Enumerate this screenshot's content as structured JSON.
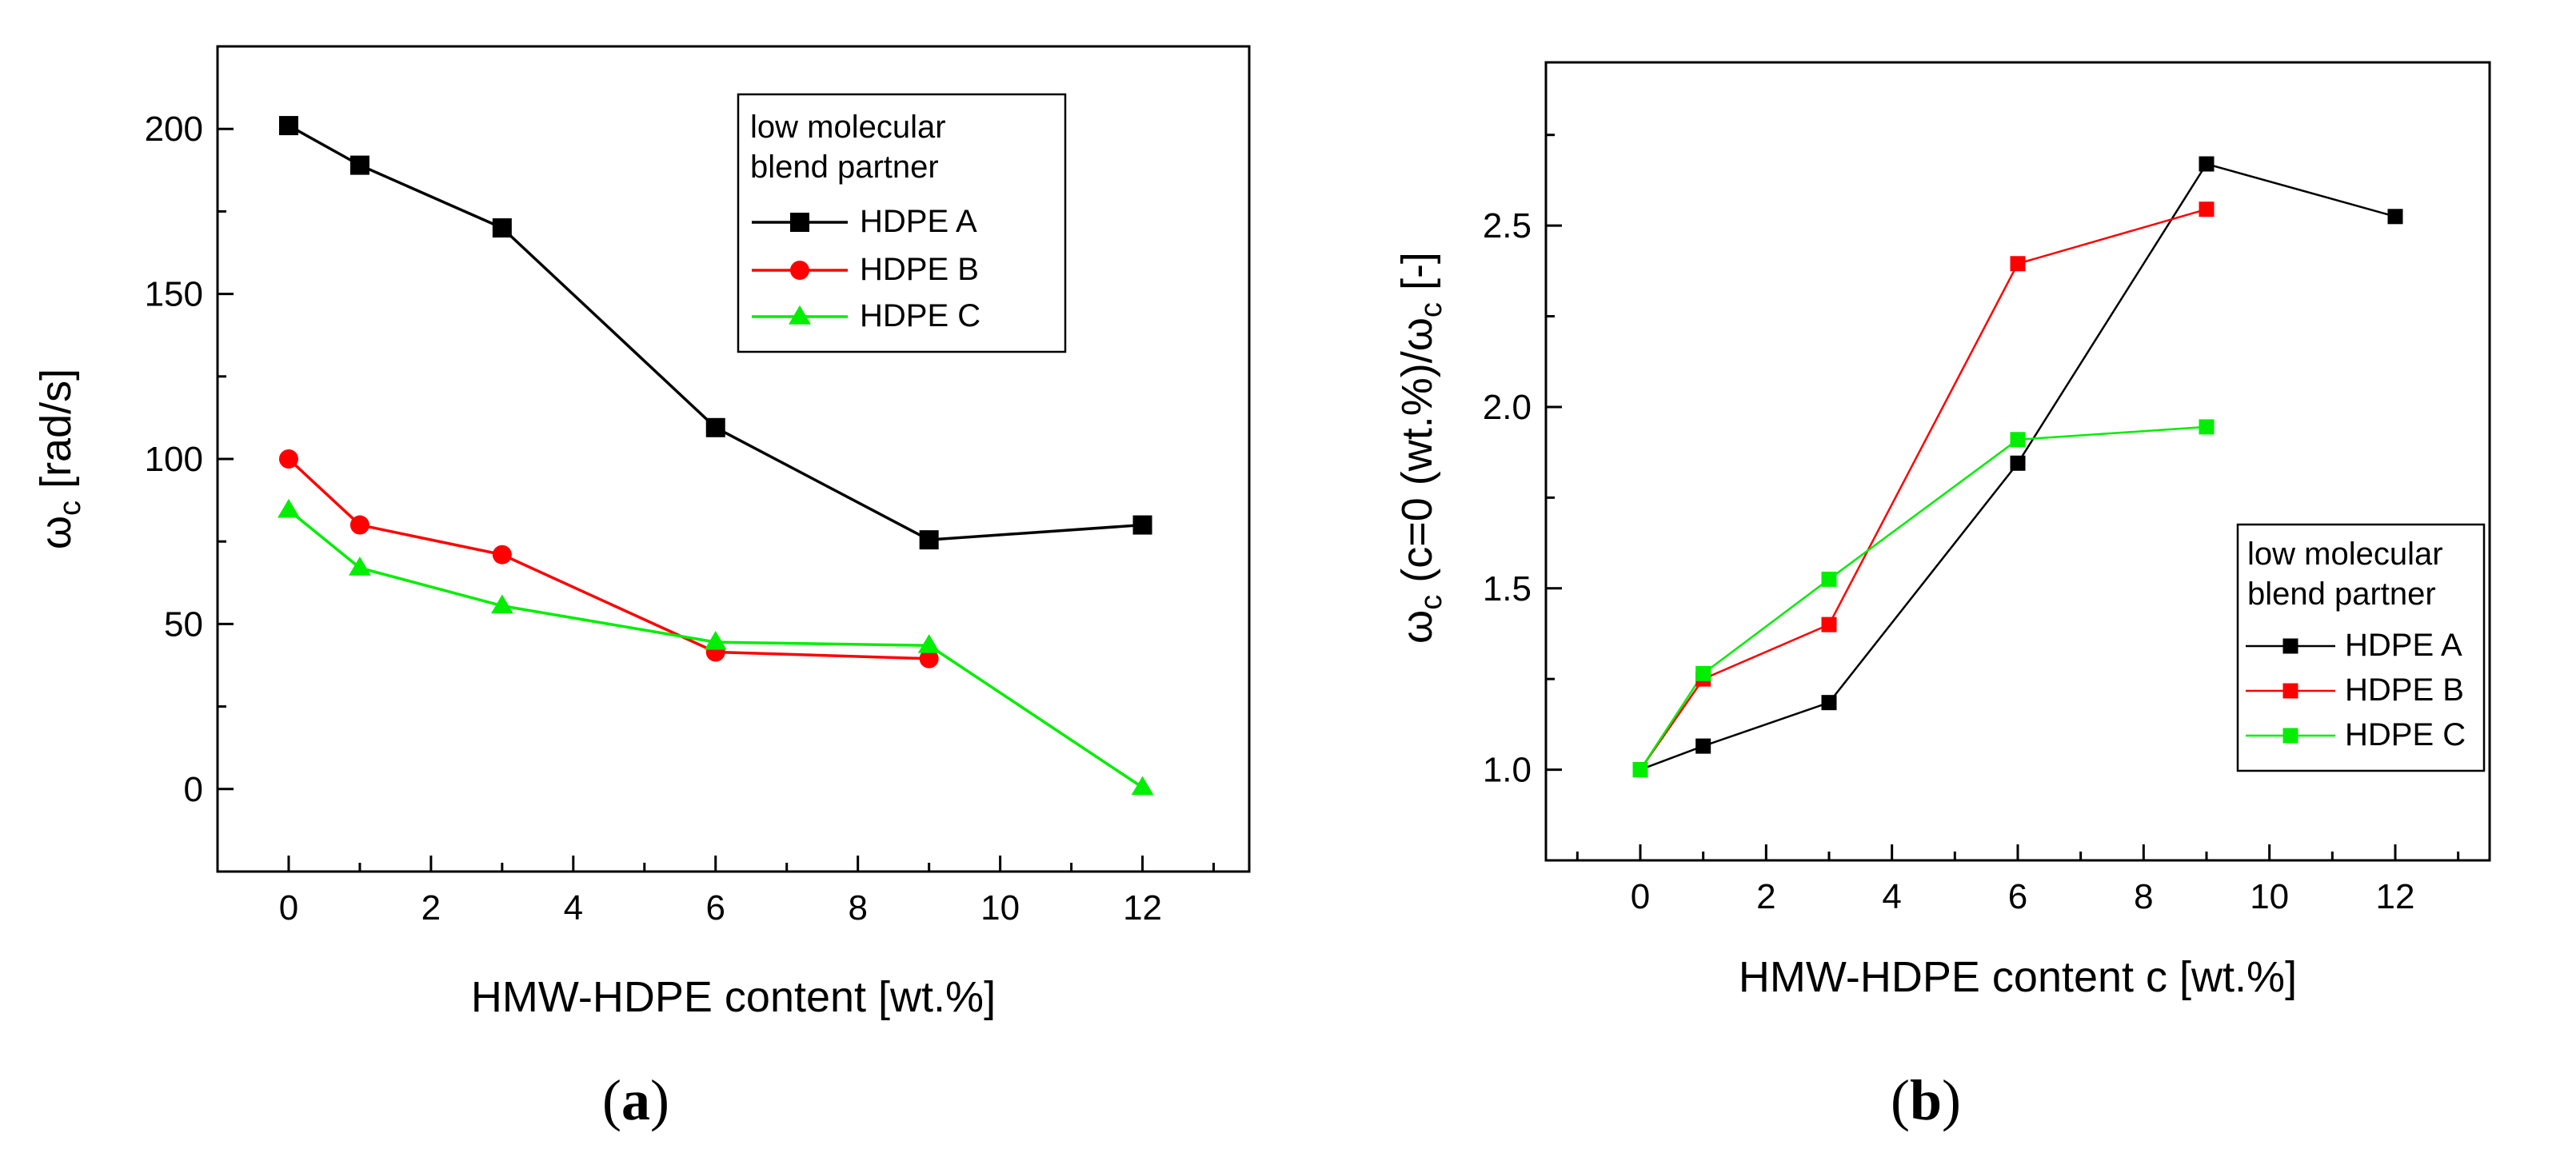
{
  "chart_data": [
    {
      "type": "line",
      "panel_label": "(a)",
      "caption_parts": [
        "(",
        "a",
        ")"
      ],
      "xlabel": "HMW-HDPE content [wt.%]",
      "ylabel": {
        "symbol": "ω",
        "subscript": "c",
        "rest": " [rad/s]"
      },
      "xlim": [
        -1,
        13.5
      ],
      "ylim": [
        -25,
        225
      ],
      "xticks": [
        0,
        2,
        4,
        6,
        8,
        10,
        12
      ],
      "yticks": [
        0,
        50,
        100,
        150,
        200
      ],
      "xtick_labels": [
        "0",
        "2",
        "4",
        "6",
        "8",
        "10",
        "12"
      ],
      "ytick_labels": [
        "0",
        "50",
        "100",
        "150",
        "200"
      ],
      "legend": {
        "title_lines": [
          "low molecular",
          "blend partner"
        ],
        "position": "top-right"
      },
      "series": [
        {
          "name": "HDPE A",
          "color": "#000000",
          "marker": "square",
          "x": [
            0,
            1,
            3,
            6,
            9,
            12
          ],
          "y": [
            201,
            189,
            170,
            109.5,
            75.5,
            80
          ]
        },
        {
          "name": "HDPE B",
          "color": "#ff0000",
          "marker": "circle",
          "x": [
            0,
            1,
            3,
            6,
            9
          ],
          "y": [
            100,
            80,
            71,
            41.5,
            39.5
          ]
        },
        {
          "name": "HDPE C",
          "color": "#00ee00",
          "marker": "triangle",
          "x": [
            0,
            1,
            3,
            6,
            9,
            12
          ],
          "y": [
            84.5,
            67,
            55.5,
            44.5,
            43.5,
            0.5
          ]
        }
      ]
    },
    {
      "type": "line",
      "panel_label": "(b)",
      "caption_parts": [
        "(",
        "b",
        ")"
      ],
      "xlabel": "HMW-HDPE content c [wt.%]",
      "ylabel": {
        "symbol": "ω",
        "subscript": "c",
        "mid": " (c=0 (wt.%)/",
        "symbol2": "ω",
        "subscript2": "c",
        "rest": " [-]"
      },
      "xlim": [
        -1.5,
        13.5
      ],
      "ylim": [
        0.75,
        2.95
      ],
      "xticks": [
        0,
        2,
        4,
        6,
        8,
        10,
        12
      ],
      "yticks": [
        1.0,
        1.5,
        2.0,
        2.5
      ],
      "xtick_labels": [
        "0",
        "2",
        "4",
        "6",
        "8",
        "10",
        "12"
      ],
      "ytick_labels": [
        "1.0",
        "1.5",
        "2.0",
        "2.5"
      ],
      "legend": {
        "title_lines": [
          "low molecular",
          "blend partner"
        ],
        "position": "bottom-right"
      },
      "series": [
        {
          "name": "HDPE A",
          "color": "#000000",
          "marker": "square",
          "x": [
            0,
            1,
            3,
            6,
            9,
            12
          ],
          "y": [
            1.0,
            1.065,
            1.185,
            1.845,
            2.67,
            2.525
          ]
        },
        {
          "name": "HDPE B",
          "color": "#ff0000",
          "marker": "square",
          "x": [
            0,
            1,
            3,
            6,
            9
          ],
          "y": [
            1.0,
            1.25,
            1.4,
            2.395,
            2.545
          ]
        },
        {
          "name": "HDPE C",
          "color": "#00ee00",
          "marker": "square",
          "x": [
            0,
            1,
            3,
            6,
            9
          ],
          "y": [
            1.0,
            1.265,
            1.525,
            1.91,
            1.945
          ]
        }
      ]
    }
  ]
}
